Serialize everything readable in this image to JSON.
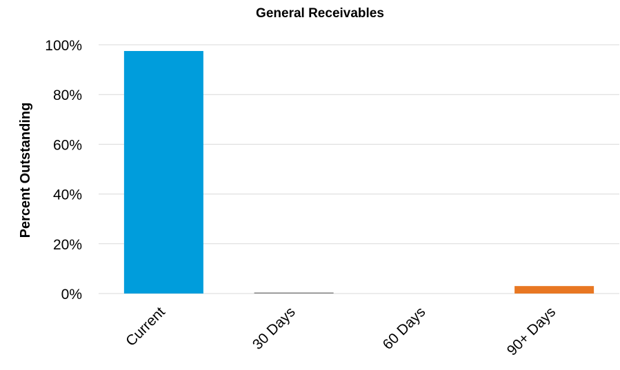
{
  "chart_data": {
    "type": "bar",
    "title": "General Receivables",
    "xlabel": "",
    "ylabel": "Percent Outstanding",
    "categories": [
      "Current",
      "30 Days",
      "60 Days",
      "90+ Days"
    ],
    "values": [
      97.5,
      0.4,
      0.0,
      3.0
    ],
    "value_unit": "%",
    "bar_colors": [
      "#009ddc",
      "#7f7f7f",
      "#7f7f7f",
      "#e87722"
    ],
    "ylim": [
      0,
      100
    ],
    "yticks": [
      0,
      20,
      40,
      60,
      80,
      100
    ],
    "ytick_labels": [
      "0%",
      "20%",
      "40%",
      "60%",
      "80%",
      "100%"
    ],
    "grid": true,
    "legend": "none"
  }
}
